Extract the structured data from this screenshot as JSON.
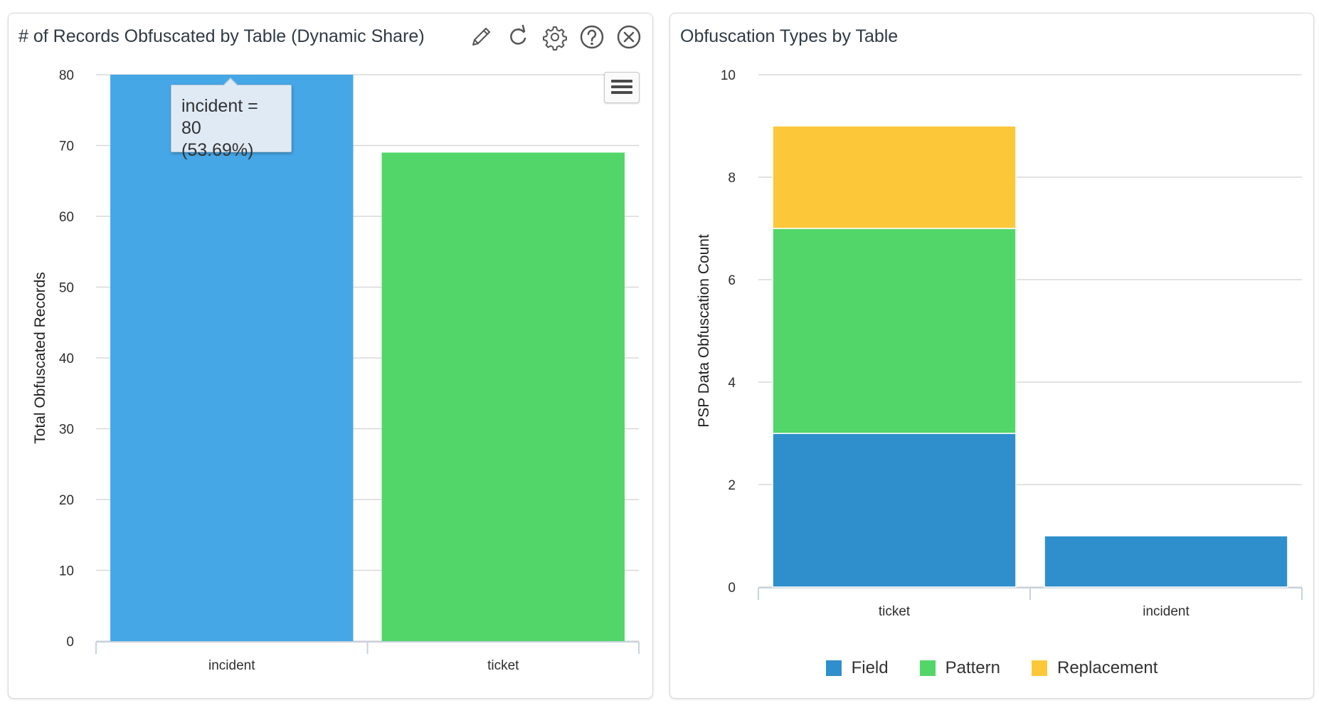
{
  "widgets": [
    {
      "title": "# of Records Obfuscated by Table (Dynamic Share)",
      "toolbar": [
        "pencil-icon",
        "refresh-icon",
        "gear-icon",
        "help-icon",
        "close-icon"
      ],
      "tooltip": {
        "line1": "incident = 80",
        "line2": "(53.69%)"
      }
    },
    {
      "title": "Obfuscation Types by Table"
    }
  ],
  "chart_data": [
    {
      "type": "bar",
      "title": "# of Records Obfuscated by Table (Dynamic Share)",
      "categories": [
        "incident",
        "ticket"
      ],
      "values": [
        80,
        69
      ],
      "colors": [
        "#46a7e6",
        "#52d66a"
      ],
      "xlabel": "",
      "ylabel": "Total Obfuscated Records",
      "ylim": [
        0,
        80
      ],
      "yticks": [
        0,
        10,
        20,
        30,
        40,
        50,
        60,
        70,
        80
      ],
      "grid": true
    },
    {
      "type": "bar",
      "stacked": true,
      "title": "Obfuscation Types by Table",
      "categories": [
        "ticket",
        "incident"
      ],
      "series": [
        {
          "name": "Field",
          "values": [
            3,
            1
          ],
          "color": "#2f8fcc"
        },
        {
          "name": "Pattern",
          "values": [
            4,
            0
          ],
          "color": "#52d66a"
        },
        {
          "name": "Replacement",
          "values": [
            2,
            0
          ],
          "color": "#fcc83a"
        }
      ],
      "xlabel": "",
      "ylabel": "PSP Data Obfuscation Count",
      "ylim": [
        0,
        10
      ],
      "yticks": [
        0,
        2,
        4,
        6,
        8,
        10
      ],
      "grid": true,
      "legend": "bottom"
    }
  ]
}
